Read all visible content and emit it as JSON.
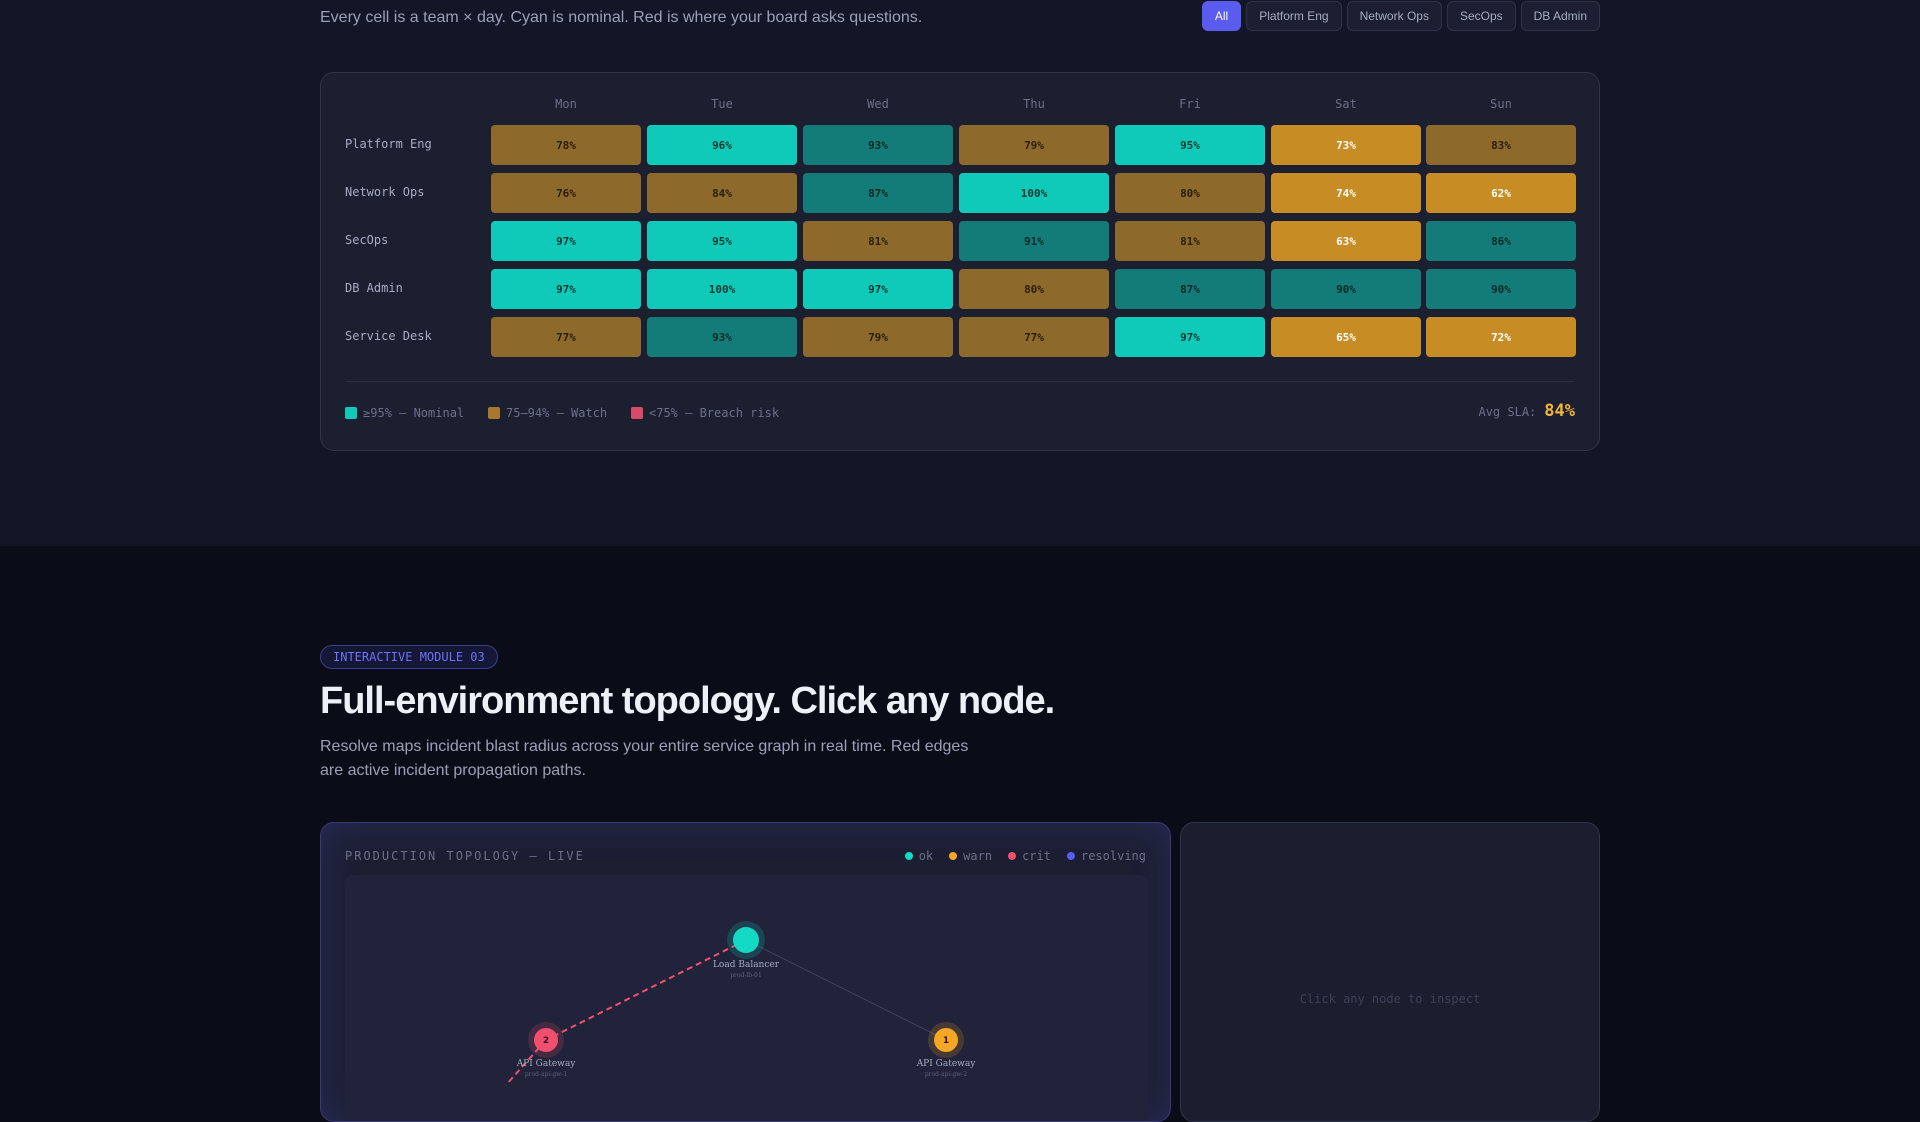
{
  "heatmap_section": {
    "subtitle": "Every cell is a team × day. Cyan is nominal. Red is where your board asks questions.",
    "filters": [
      "All",
      "Platform Eng",
      "Network Ops",
      "SecOps",
      "DB Admin"
    ],
    "active_filter": "All",
    "days": [
      "Mon",
      "Tue",
      "Wed",
      "Thu",
      "Fri",
      "Sat",
      "Sun"
    ],
    "rows": [
      {
        "team": "Platform Eng",
        "cells": [
          {
            "value": "78%",
            "tone": "watch"
          },
          {
            "value": "96%",
            "tone": "nominal"
          },
          {
            "value": "93%",
            "tone": "teal"
          },
          {
            "value": "79%",
            "tone": "watch"
          },
          {
            "value": "95%",
            "tone": "nominal"
          },
          {
            "value": "73%",
            "tone": "amber"
          },
          {
            "value": "83%",
            "tone": "watch"
          }
        ]
      },
      {
        "team": "Network Ops",
        "cells": [
          {
            "value": "76%",
            "tone": "watch"
          },
          {
            "value": "84%",
            "tone": "watch"
          },
          {
            "value": "87%",
            "tone": "teal"
          },
          {
            "value": "100%",
            "tone": "nominal"
          },
          {
            "value": "80%",
            "tone": "watch"
          },
          {
            "value": "74%",
            "tone": "amber"
          },
          {
            "value": "62%",
            "tone": "amber"
          }
        ]
      },
      {
        "team": "SecOps",
        "cells": [
          {
            "value": "97%",
            "tone": "nominal"
          },
          {
            "value": "95%",
            "tone": "nominal"
          },
          {
            "value": "81%",
            "tone": "watch"
          },
          {
            "value": "91%",
            "tone": "teal"
          },
          {
            "value": "81%",
            "tone": "watch"
          },
          {
            "value": "63%",
            "tone": "amber"
          },
          {
            "value": "86%",
            "tone": "teal"
          }
        ]
      },
      {
        "team": "DB Admin",
        "cells": [
          {
            "value": "97%",
            "tone": "nominal"
          },
          {
            "value": "100%",
            "tone": "nominal"
          },
          {
            "value": "97%",
            "tone": "nominal"
          },
          {
            "value": "80%",
            "tone": "watch"
          },
          {
            "value": "87%",
            "tone": "teal"
          },
          {
            "value": "90%",
            "tone": "teal"
          },
          {
            "value": "90%",
            "tone": "teal"
          }
        ]
      },
      {
        "team": "Service Desk",
        "cells": [
          {
            "value": "77%",
            "tone": "watch"
          },
          {
            "value": "93%",
            "tone": "teal"
          },
          {
            "value": "79%",
            "tone": "watch"
          },
          {
            "value": "77%",
            "tone": "watch"
          },
          {
            "value": "97%",
            "tone": "nominal"
          },
          {
            "value": "65%",
            "tone": "amber"
          },
          {
            "value": "72%",
            "tone": "amber"
          }
        ]
      }
    ],
    "legend": [
      {
        "label": "≥95% — Nominal",
        "color": "#0fcab8"
      },
      {
        "label": "75–94% — Watch",
        "color": "#a8782c"
      },
      {
        "label": "<75% — Breach risk",
        "color": "#d94a6a"
      }
    ],
    "avg_label": "Avg SLA:",
    "avg_value": "84%"
  },
  "module": {
    "badge": "INTERACTIVE MODULE 03",
    "title": "Full-environment topology. Click any node.",
    "desc_line1": "Resolve maps incident blast radius across your entire service graph in real time. Red edges",
    "desc_line2": "are active incident propagation paths."
  },
  "topology": {
    "title": "PRODUCTION TOPOLOGY — LIVE",
    "legend": [
      {
        "label": "ok",
        "color": "#14d9c4"
      },
      {
        "label": "warn",
        "color": "#f5a623"
      },
      {
        "label": "crit",
        "color": "#f0506e"
      },
      {
        "label": "resolving",
        "color": "#5a5cf0"
      }
    ],
    "nodes": [
      {
        "id": "lb",
        "label": "Load Balancer",
        "sub": "prod-lb-01",
        "status": "ok",
        "badge": ""
      },
      {
        "id": "gw1",
        "label": "API Gateway",
        "sub": "prod-api-gw-1",
        "status": "crit",
        "badge": "2"
      },
      {
        "id": "gw2",
        "label": "API Gateway",
        "sub": "prod-api-gw-2",
        "status": "warn",
        "badge": "1"
      }
    ],
    "edges": [
      {
        "from": "lb",
        "to": "gw1",
        "status": "crit"
      },
      {
        "from": "lb",
        "to": "gw2",
        "status": "ok"
      }
    ]
  },
  "inspector": {
    "hint": "Click any node to inspect"
  }
}
